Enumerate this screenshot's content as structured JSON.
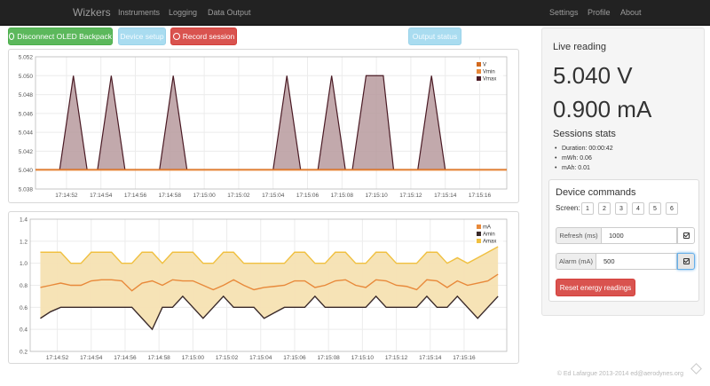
{
  "nav": {
    "brand": "Wizkers",
    "left_links": [
      "Instruments",
      "Logging",
      "Data Output"
    ],
    "right_links": [
      "Settings",
      "Profile",
      "About"
    ]
  },
  "toolbar": {
    "disconnect_label": "Disconnect OLED Backpack",
    "device_setup_label": "Device setup",
    "record_label": "Record session",
    "output_status_label": "Output status"
  },
  "chart_data": [
    {
      "type": "area",
      "title": "",
      "xlabel": "",
      "ylabel": "",
      "ylim": [
        5.038,
        5.052
      ],
      "yticks": [
        "5.052",
        "5.050",
        "5.048",
        "5.046",
        "5.044",
        "5.042",
        "5.040",
        "5.038"
      ],
      "xticks": [
        "17:14:52",
        "17:14:54",
        "17:14:56",
        "17:14:58",
        "17:15:00",
        "17:15:02",
        "17:15:04",
        "17:15:06",
        "17:15:08",
        "17:15:10",
        "17:15:12",
        "17:15:14",
        "17:15:16"
      ],
      "legend": "top-right",
      "series": [
        {
          "name": "V",
          "color": "#d2691e"
        },
        {
          "name": "Vmin",
          "color": "#e8893a"
        },
        {
          "name": "Vmax",
          "color": "#4a1a24"
        }
      ],
      "baseline": 5.04,
      "peaks": [
        {
          "start": "17:14:51.6",
          "peak_start": "17:14:52.4",
          "peak_end": "17:14:52.4",
          "end": "17:14:53.2",
          "value": 5.05
        },
        {
          "start": "17:14:53.8",
          "peak_start": "17:14:54.6",
          "peak_end": "17:14:54.6",
          "end": "17:14:55.4",
          "value": 5.05
        },
        {
          "start": "17:14:57.4",
          "peak_start": "17:14:58.2",
          "peak_end": "17:14:58.2",
          "end": "17:14:59.0",
          "value": 5.05
        },
        {
          "start": "17:15:04.0",
          "peak_start": "17:15:04.8",
          "peak_end": "17:15:04.8",
          "end": "17:15:05.6",
          "value": 5.05
        },
        {
          "start": "17:15:06.6",
          "peak_start": "17:15:07.4",
          "peak_end": "17:15:07.4",
          "end": "17:15:08.2",
          "value": 5.05
        },
        {
          "start": "17:15:08.6",
          "peak_start": "17:15:09.4",
          "peak_end": "17:15:10.4",
          "end": "17:15:11.0",
          "value": 5.05
        },
        {
          "start": "17:15:12.4",
          "peak_start": "17:15:13.2",
          "peak_end": "17:15:13.2",
          "end": "17:15:14.0",
          "value": 5.05
        }
      ]
    },
    {
      "type": "area",
      "title": "",
      "xlabel": "",
      "ylabel": "",
      "ylim": [
        0.2,
        1.4
      ],
      "yticks": [
        "1.4",
        "1.2",
        "1.0",
        "0.8",
        "0.6",
        "0.4",
        "0.2"
      ],
      "xticks": [
        "17:14:52",
        "17:14:54",
        "17:14:56",
        "17:14:58",
        "17:15:00",
        "17:15:02",
        "17:15:04",
        "17:15:06",
        "17:15:08",
        "17:15:10",
        "17:15:12",
        "17:15:14",
        "17:15:16"
      ],
      "legend": "top-right",
      "series": [
        {
          "name": "mA",
          "color": "#e8893a"
        },
        {
          "name": "Amin",
          "color": "#3a2a2a"
        },
        {
          "name": "Amax",
          "color": "#f0c040"
        }
      ],
      "x_start": "17:14:51.0",
      "x_step_s": 0.6,
      "amax": [
        1.1,
        1.1,
        1.1,
        1.0,
        1.0,
        1.1,
        1.1,
        1.1,
        1.0,
        1.0,
        1.1,
        1.1,
        1.0,
        1.1,
        1.1,
        1.1,
        1.0,
        1.0,
        1.1,
        1.1,
        1.0,
        1.0,
        1.0,
        1.0,
        1.0,
        1.1,
        1.1,
        1.0,
        1.0,
        1.1,
        1.1,
        1.0,
        1.0,
        1.1,
        1.1,
        1.0,
        1.0,
        1.0,
        1.1,
        1.1,
        1.0,
        1.05,
        1.0,
        1.05,
        1.1,
        1.15
      ],
      "ma": [
        0.78,
        0.8,
        0.82,
        0.8,
        0.8,
        0.84,
        0.85,
        0.85,
        0.84,
        0.75,
        0.82,
        0.84,
        0.8,
        0.85,
        0.84,
        0.84,
        0.8,
        0.76,
        0.8,
        0.85,
        0.8,
        0.76,
        0.78,
        0.79,
        0.8,
        0.84,
        0.84,
        0.78,
        0.8,
        0.84,
        0.85,
        0.8,
        0.78,
        0.85,
        0.84,
        0.8,
        0.79,
        0.76,
        0.85,
        0.84,
        0.78,
        0.84,
        0.8,
        0.82,
        0.84,
        0.9
      ],
      "amin": [
        0.5,
        0.56,
        0.6,
        0.6,
        0.6,
        0.6,
        0.6,
        0.6,
        0.6,
        0.6,
        0.5,
        0.4,
        0.6,
        0.6,
        0.7,
        0.6,
        0.5,
        0.6,
        0.7,
        0.6,
        0.6,
        0.6,
        0.5,
        0.55,
        0.6,
        0.6,
        0.6,
        0.7,
        0.6,
        0.6,
        0.6,
        0.6,
        0.6,
        0.7,
        0.6,
        0.6,
        0.6,
        0.6,
        0.7,
        0.6,
        0.6,
        0.7,
        0.6,
        0.5,
        0.6,
        0.7
      ]
    }
  ],
  "sidebar": {
    "live_heading": "Live reading",
    "voltage": "5.040 V",
    "current": "0.900 mA",
    "stats_heading": "Sessions stats",
    "stats": [
      "Duration: 00:00:42",
      "mWh: 0.06",
      "mAh: 0.01"
    ],
    "commands": {
      "heading": "Device commands",
      "screen_label": "Screen:",
      "screens": [
        "1",
        "2",
        "3",
        "4",
        "5",
        "6"
      ],
      "refresh_label": "Refresh (ms)",
      "refresh_value": "1000",
      "alarm_label": "Alarm (mA)",
      "alarm_value": "500",
      "reset_label": "Reset energy readings"
    }
  },
  "footer": "© Ed Lafargue 2013-2014 ed@aerodynes.org"
}
